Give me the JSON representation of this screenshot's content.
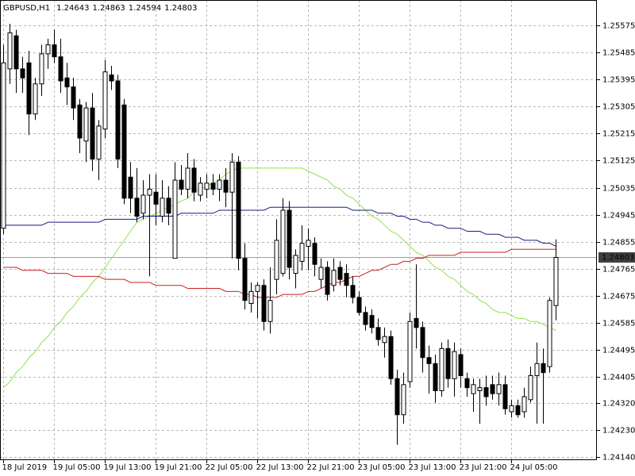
{
  "chart_data": {
    "type": "candlestick",
    "title": "GBPUSD,H1",
    "categories": [
      "18 Jul 2019",
      null,
      null,
      null,
      null,
      null,
      null,
      null,
      "19 Jul 05:00",
      null,
      null,
      null,
      null,
      null,
      null,
      null,
      "19 Jul 13:00",
      null,
      null,
      null,
      null,
      null,
      null,
      null,
      "19 Jul 21:00",
      null,
      null,
      null,
      null,
      null,
      null,
      null,
      "22 Jul 05:00",
      null,
      null,
      null,
      null,
      null,
      null,
      null,
      "22 Jul 13:00",
      null,
      null,
      null,
      null,
      null,
      null,
      null,
      "22 Jul 21:00",
      null,
      null,
      null,
      null,
      null,
      null,
      null,
      "23 Jul 05:00",
      null,
      null,
      null,
      null,
      null,
      null,
      null,
      "23 Jul 13:00",
      null,
      null,
      null,
      null,
      null,
      null,
      null,
      "23 Jul 21:00",
      null,
      null,
      null,
      null,
      null,
      null,
      null,
      "24 Jul 05:00",
      null,
      null,
      null,
      null,
      null,
      null,
      null
    ],
    "open": [
      1.249,
      1.2543,
      1.2554,
      1.2543,
      1.2545,
      1.2528,
      1.2538,
      1.2548,
      1.2551,
      1.2547,
      1.254,
      1.2537,
      1.2531,
      1.2519,
      1.253,
      1.2513,
      1.2523,
      1.2541,
      1.2539,
      1.2531,
      1.2507,
      1.25,
      1.2495,
      1.2501,
      1.2502,
      1.2494,
      1.25,
      1.248,
      1.2506,
      1.2503,
      1.251,
      1.2501,
      1.2503,
      1.2505,
      1.2503,
      1.2506,
      1.2502,
      1.2512,
      1.248,
      1.2465,
      1.2469,
      1.2471,
      1.2459,
      1.2473,
      1.2475,
      1.2496,
      1.2475,
      1.2479,
      1.2484,
      1.2485,
      1.2473,
      1.2477,
      1.2471,
      1.2477,
      1.2475,
      1.2471,
      1.2467,
      1.2462,
      1.2461,
      1.2457,
      1.2452,
      1.2454,
      1.244,
      1.2428,
      1.2439,
      1.246,
      1.2457,
      1.2447,
      1.2445,
      1.2436,
      1.245,
      1.244,
      1.2448,
      1.244,
      1.2435,
      1.2436,
      1.2437,
      1.2438,
      1.2435,
      1.2438,
      1.2429,
      1.2431,
      1.2429,
      1.2433,
      1.2441,
      1.2445,
      1.2444,
      1.24643
    ],
    "high": [
      1.2551,
      1.2558,
      1.2556,
      1.2547,
      1.2549,
      1.254,
      1.2551,
      1.2553,
      1.2556,
      1.2553,
      1.2545,
      1.254,
      1.2533,
      1.2532,
      1.2535,
      1.2526,
      1.2546,
      1.2544,
      1.2541,
      1.2533,
      1.2512,
      1.251,
      1.2506,
      1.2508,
      1.2508,
      1.2506,
      1.2504,
      1.2512,
      1.2511,
      1.2515,
      1.2513,
      1.2507,
      1.2508,
      1.2508,
      1.2508,
      1.251,
      1.2515,
      1.2514,
      1.2485,
      1.2472,
      1.2472,
      1.2473,
      1.2477,
      1.2493,
      1.25,
      1.2499,
      1.2483,
      1.2491,
      1.249,
      1.2487,
      1.248,
      1.2479,
      1.248,
      1.2479,
      1.2478,
      1.2474,
      1.2469,
      1.2464,
      1.2463,
      1.246,
      1.2457,
      1.2456,
      1.2443,
      1.2442,
      1.2462,
      1.2478,
      1.2459,
      1.2451,
      1.2448,
      1.2452,
      1.2453,
      1.2452,
      1.245,
      1.2442,
      1.244,
      1.244,
      1.2441,
      1.2441,
      1.2442,
      1.2441,
      1.2433,
      1.2433,
      1.2437,
      1.2444,
      1.2452,
      1.245,
      1.2467,
      1.24863
    ],
    "low": [
      1.2488,
      1.2538,
      1.2535,
      1.2535,
      1.2521,
      1.2526,
      1.2534,
      1.2543,
      1.2545,
      1.2535,
      1.2531,
      1.2526,
      1.2515,
      1.2512,
      1.2509,
      1.2506,
      1.252,
      1.2536,
      1.251,
      1.2498,
      1.2495,
      1.2492,
      1.2493,
      1.2474,
      1.2491,
      1.2492,
      1.2491,
      1.248,
      1.2501,
      1.25,
      1.2499,
      1.2499,
      1.25,
      1.2501,
      1.2499,
      1.2497,
      1.248,
      1.2476,
      1.2463,
      1.2462,
      1.246,
      1.2456,
      1.2455,
      1.2468,
      1.2474,
      1.2473,
      1.247,
      1.2476,
      1.2476,
      1.2474,
      1.247,
      1.2466,
      1.2469,
      1.2471,
      1.2467,
      1.2465,
      1.2461,
      1.2456,
      1.2455,
      1.2451,
      1.2447,
      1.2438,
      1.2418,
      1.2425,
      1.2437,
      1.245,
      1.2442,
      1.2435,
      1.2432,
      1.2434,
      1.2437,
      1.2434,
      1.2437,
      1.2434,
      1.2429,
      1.2425,
      1.2431,
      1.2433,
      1.2431,
      1.2428,
      1.2427,
      1.2427,
      1.2427,
      1.2432,
      1.2425,
      1.2425,
      1.2442,
      1.24594
    ],
    "close": [
      1.2545,
      1.2555,
      1.2543,
      1.254,
      1.2528,
      1.2538,
      1.2548,
      1.2551,
      1.2547,
      1.2539,
      1.2537,
      1.253,
      1.252,
      1.253,
      1.2513,
      1.2524,
      1.2542,
      1.2539,
      1.2513,
      1.25,
      1.25,
      1.2494,
      1.2501,
      1.2503,
      1.2498,
      1.25,
      1.2495,
      1.2506,
      1.2503,
      1.251,
      1.2502,
      1.2505,
      1.2505,
      1.2503,
      1.2506,
      1.2502,
      1.2512,
      1.248,
      1.2466,
      1.2469,
      1.2471,
      1.2459,
      1.2466,
      1.2486,
      1.2496,
      1.2477,
      1.2481,
      1.2485,
      1.2486,
      1.2478,
      1.2477,
      1.2468,
      1.2476,
      1.2473,
      1.2471,
      1.2467,
      1.2462,
      1.2458,
      1.2457,
      1.2453,
      1.2454,
      1.244,
      1.2428,
      1.2438,
      1.2459,
      1.2457,
      1.2447,
      1.2445,
      1.2436,
      1.245,
      1.244,
      1.2449,
      1.2441,
      1.2437,
      1.2438,
      1.2437,
      1.2434,
      1.2435,
      1.2438,
      1.243,
      1.2431,
      1.2428,
      1.2434,
      1.2441,
      1.2445,
      1.2442,
      1.2466,
      1.24803
    ],
    "moving_averages": [
      {
        "color": "#8ee34a",
        "values": [
          1.2437,
          1.2439,
          1.2442,
          1.2444,
          1.2447,
          1.2449,
          1.2452,
          1.2454,
          1.2457,
          1.2459,
          1.2462,
          1.2464,
          1.2467,
          1.2469,
          1.2472,
          1.2474,
          1.2477,
          1.248,
          1.2483,
          1.2486,
          1.2489,
          1.2492,
          1.2493,
          1.2494,
          1.2495,
          1.2496,
          1.2497,
          1.2498,
          1.2499,
          1.25,
          1.2502,
          1.2503,
          1.2504,
          1.2505,
          1.2506,
          1.2508,
          1.2509,
          1.251,
          1.251,
          1.251,
          1.251,
          1.251,
          1.251,
          1.251,
          1.251,
          1.251,
          1.251,
          1.251,
          1.2509,
          1.2508,
          1.2507,
          1.2506,
          1.2504,
          1.2503,
          1.2501,
          1.25,
          1.2498,
          1.2496,
          1.2494,
          1.2493,
          1.2491,
          1.2489,
          1.2488,
          1.2486,
          1.2484,
          1.2482,
          1.2481,
          1.2479,
          1.2477,
          1.2476,
          1.2474,
          1.2473,
          1.2471,
          1.2469,
          1.2468,
          1.2466,
          1.2465,
          1.2463,
          1.2462,
          1.2462,
          1.2461,
          1.246,
          1.246,
          1.2459,
          1.2459,
          1.2458,
          1.2457,
          1.2456
        ]
      },
      {
        "color": "#1a1a80",
        "values": [
          1.2491,
          1.2491,
          1.2491,
          1.2491,
          1.2491,
          1.2491,
          1.2491,
          1.2492,
          1.2492,
          1.2492,
          1.2492,
          1.2492,
          1.2492,
          1.2492,
          1.2492,
          1.2492,
          1.2493,
          1.2493,
          1.2493,
          1.2493,
          1.2493,
          1.2493,
          1.2494,
          1.2494,
          1.2494,
          1.2494,
          1.2494,
          1.2494,
          1.2495,
          1.2495,
          1.2495,
          1.2495,
          1.2495,
          1.2495,
          1.2496,
          1.2496,
          1.2496,
          1.2496,
          1.2496,
          1.2496,
          1.2496,
          1.2496,
          1.2497,
          1.2497,
          1.2497,
          1.2497,
          1.2497,
          1.2497,
          1.2497,
          1.2497,
          1.2497,
          1.2497,
          1.2497,
          1.2497,
          1.2497,
          1.2496,
          1.2496,
          1.2496,
          1.2496,
          1.2495,
          1.2495,
          1.2495,
          1.2494,
          1.2494,
          1.2493,
          1.2493,
          1.2492,
          1.2492,
          1.2491,
          1.2491,
          1.249,
          1.249,
          1.249,
          1.2489,
          1.2489,
          1.2489,
          1.2488,
          1.2488,
          1.2488,
          1.2487,
          1.2487,
          1.2487,
          1.2486,
          1.2486,
          1.2486,
          1.2485,
          1.2485,
          1.2484
        ]
      },
      {
        "color": "#c8201e",
        "values": [
          1.2477,
          1.2477,
          1.2477,
          1.2476,
          1.2476,
          1.2476,
          1.2476,
          1.2475,
          1.2475,
          1.2475,
          1.2475,
          1.2474,
          1.2474,
          1.2474,
          1.2474,
          1.2474,
          1.2473,
          1.2473,
          1.2473,
          1.2473,
          1.2472,
          1.2472,
          1.2472,
          1.2472,
          1.2471,
          1.2471,
          1.2471,
          1.2471,
          1.2471,
          1.247,
          1.247,
          1.247,
          1.247,
          1.247,
          1.247,
          1.2469,
          1.2469,
          1.2469,
          1.2468,
          1.2468,
          1.2467,
          1.2467,
          1.2467,
          1.2467,
          1.2468,
          1.2468,
          1.2468,
          1.2468,
          1.2469,
          1.2469,
          1.247,
          1.2471,
          1.2472,
          1.2472,
          1.2473,
          1.2474,
          1.2474,
          1.2475,
          1.2476,
          1.2476,
          1.2477,
          1.2478,
          1.2478,
          1.2479,
          1.2479,
          1.248,
          1.248,
          1.2481,
          1.2481,
          1.2481,
          1.2481,
          1.2481,
          1.2482,
          1.2482,
          1.2482,
          1.2482,
          1.2482,
          1.2482,
          1.2482,
          1.2482,
          1.2483,
          1.2483,
          1.2483,
          1.2483,
          1.2483,
          1.2483,
          1.2483,
          1.2483
        ]
      }
    ],
    "bull_color": "#ffffff",
    "bear_color": "#000000",
    "ylim": [
      1.24129,
      1.25659
    ],
    "yticks": [
      1.25575,
      1.25485,
      1.25395,
      1.25305,
      1.25215,
      1.25125,
      1.25035,
      1.24945,
      1.24855,
      1.24765,
      1.24675,
      1.24585,
      1.24495,
      1.24405,
      {
        "value": 1.2432,
        "label": "1.24320"
      },
      {
        "value": 1.2423,
        "label": "1.24230"
      },
      {
        "value": 1.2414,
        "label": "1.24140"
      }
    ],
    "grid": true
  }
}
